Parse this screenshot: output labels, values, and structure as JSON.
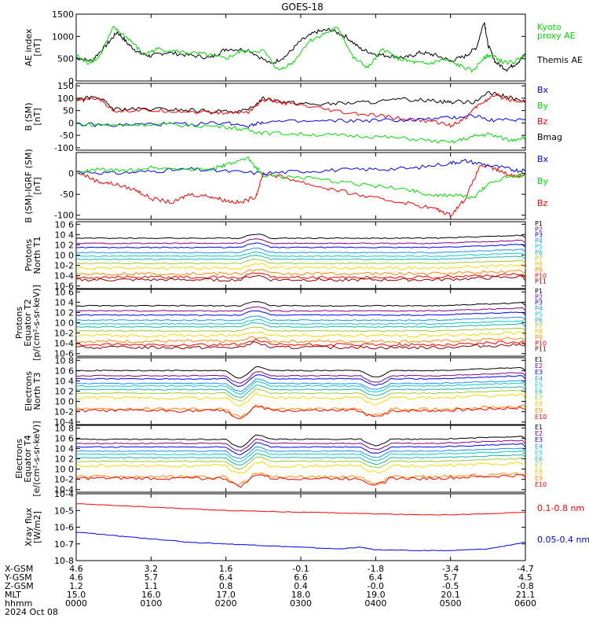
{
  "title": "GOES-18",
  "colors": {
    "black": "#000000",
    "green": "#00dd00",
    "blue": "#0000ff",
    "red": "#ff0000"
  },
  "chart_data": [
    {
      "type": "line",
      "panel": "ae",
      "ylabel": [
        "AE index",
        "[nT]"
      ],
      "ylim": [
        0,
        1500
      ],
      "yticks": [
        "0",
        "500",
        "1000",
        "1500"
      ],
      "ytickvals": [
        0,
        500,
        1000,
        1500
      ],
      "legend": [
        {
          "text": "Kyoto",
          "color": "green"
        },
        {
          "text": "proxy AE",
          "color": "green"
        },
        {
          "text": "Themis AE",
          "color": "black"
        }
      ],
      "series": [
        {
          "name": "Themis AE",
          "color": "black",
          "x": [
            0,
            0.2,
            0.4,
            0.55,
            0.7,
            0.85,
            1.0,
            1.2,
            1.5,
            1.8,
            2.0,
            2.3,
            2.6,
            2.8,
            3.0,
            3.2,
            3.4,
            3.6,
            3.8,
            4.0,
            4.2,
            4.4,
            4.6,
            4.8,
            5.0,
            5.2,
            5.35,
            5.45,
            5.5,
            5.6,
            5.75,
            5.9,
            6.0
          ],
          "y": [
            520,
            450,
            800,
            1100,
            820,
            620,
            560,
            640,
            580,
            520,
            720,
            700,
            380,
            560,
            900,
            1100,
            1150,
            1000,
            720,
            600,
            560,
            520,
            640,
            580,
            450,
            560,
            760,
            1350,
            820,
            420,
            260,
            420,
            600
          ]
        },
        {
          "name": "Kyoto proxy AE",
          "color": "green",
          "x": [
            0,
            0.15,
            0.3,
            0.5,
            0.7,
            0.9,
            1.1,
            1.4,
            1.7,
            2.0,
            2.2,
            2.5,
            2.7,
            2.9,
            3.1,
            3.3,
            3.5,
            3.7,
            3.9,
            4.1,
            4.3,
            4.5,
            4.7,
            4.9,
            5.1,
            5.3,
            5.45,
            5.55,
            5.7,
            5.85,
            6.0
          ],
          "y": [
            580,
            400,
            520,
            1200,
            950,
            600,
            720,
            650,
            600,
            500,
            660,
            680,
            240,
            420,
            880,
            1050,
            1200,
            520,
            300,
            720,
            500,
            420,
            380,
            480,
            360,
            220,
            540,
            580,
            420,
            420,
            580
          ]
        }
      ]
    },
    {
      "type": "line",
      "panel": "b",
      "ylabel": [
        "B (SM)",
        "[nT]"
      ],
      "ylim": [
        -110,
        160
      ],
      "yticks": [
        "-100",
        "-50",
        "0",
        "50",
        "100",
        "150"
      ],
      "ytickvals": [
        -100,
        -50,
        0,
        50,
        100,
        150
      ],
      "legend": [
        {
          "text": "Bx",
          "color": "blue"
        },
        {
          "text": "By",
          "color": "green"
        },
        {
          "text": "Bz",
          "color": "red"
        },
        {
          "text": "Bmag",
          "color": "black"
        }
      ],
      "series": [
        {
          "name": "Bmag",
          "color": "black",
          "x": [
            0,
            0.3,
            0.5,
            0.8,
            1.2,
            1.6,
            2.0,
            2.3,
            2.5,
            2.8,
            3.2,
            3.6,
            4.0,
            4.4,
            4.8,
            5.0,
            5.3,
            5.5,
            5.7,
            6.0
          ],
          "y": [
            95,
            105,
            55,
            55,
            55,
            50,
            45,
            50,
            100,
            85,
            75,
            80,
            85,
            95,
            90,
            85,
            85,
            120,
            110,
            85
          ]
        },
        {
          "name": "Bz",
          "color": "red",
          "x": [
            0,
            0.3,
            0.5,
            0.8,
            1.2,
            1.6,
            2.0,
            2.3,
            2.5,
            2.8,
            3.2,
            3.6,
            4.0,
            4.4,
            4.8,
            5.0,
            5.2,
            5.4,
            5.6,
            5.8,
            6.0
          ],
          "y": [
            90,
            100,
            50,
            50,
            50,
            45,
            40,
            45,
            95,
            80,
            60,
            40,
            30,
            15,
            5,
            -10,
            20,
            80,
            110,
            95,
            85
          ]
        },
        {
          "name": "Bx",
          "color": "blue",
          "x": [
            0,
            0.5,
            1.0,
            1.5,
            2.0,
            2.3,
            2.5,
            3.0,
            3.5,
            4.0,
            4.5,
            5.0,
            5.3,
            5.6,
            6.0
          ],
          "y": [
            -5,
            -10,
            -5,
            -5,
            0,
            -10,
            5,
            5,
            8,
            10,
            12,
            20,
            30,
            10,
            15
          ]
        },
        {
          "name": "By",
          "color": "green",
          "x": [
            0,
            0.5,
            1.0,
            1.5,
            2.0,
            2.3,
            2.5,
            3.0,
            3.5,
            4.0,
            4.5,
            5.0,
            5.3,
            5.5,
            5.8,
            6.0
          ],
          "y": [
            -5,
            -10,
            -5,
            -10,
            -15,
            -30,
            -40,
            -45,
            -50,
            -55,
            -65,
            -80,
            -55,
            -45,
            -70,
            -55
          ]
        }
      ]
    },
    {
      "type": "line",
      "panel": "b-igrf",
      "ylabel": [
        "B (SM)-IGRF (SM)",
        "[nT]"
      ],
      "ylim": [
        -110,
        50
      ],
      "yticks": [
        "-100",
        "-50",
        "0"
      ],
      "ytickvals": [
        -100,
        -50,
        0
      ],
      "legend": [
        {
          "text": "Bx",
          "color": "blue"
        },
        {
          "text": "By",
          "color": "green"
        },
        {
          "text": "Bz",
          "color": "red"
        }
      ],
      "series": [
        {
          "name": "Bz",
          "color": "red",
          "x": [
            0,
            0.3,
            0.5,
            0.8,
            1.0,
            1.3,
            1.5,
            1.8,
            2.0,
            2.2,
            2.4,
            2.5,
            2.8,
            3.2,
            3.6,
            4.0,
            4.4,
            4.8,
            5.0,
            5.2,
            5.4,
            5.6,
            5.8,
            6.0
          ],
          "y": [
            5,
            -20,
            -25,
            -40,
            -60,
            -70,
            -50,
            -55,
            -65,
            -70,
            -55,
            0,
            -10,
            -30,
            -45,
            -60,
            -70,
            -85,
            -100,
            -60,
            20,
            10,
            -5,
            -5
          ]
        },
        {
          "name": "Bx",
          "color": "blue",
          "x": [
            0,
            0.5,
            1.0,
            1.5,
            2.0,
            2.5,
            3.0,
            3.5,
            4.0,
            4.5,
            5.0,
            5.2,
            5.5,
            5.8,
            6.0
          ],
          "y": [
            5,
            0,
            5,
            10,
            5,
            0,
            5,
            8,
            10,
            12,
            25,
            30,
            20,
            10,
            5
          ]
        },
        {
          "name": "By",
          "color": "green",
          "x": [
            0,
            0.3,
            0.6,
            1.0,
            1.4,
            1.8,
            2.0,
            2.3,
            2.5,
            3.0,
            3.5,
            4.0,
            4.5,
            4.8,
            5.0,
            5.3,
            5.5,
            5.8,
            6.0
          ],
          "y": [
            0,
            10,
            5,
            15,
            10,
            10,
            20,
            35,
            -5,
            -10,
            -20,
            -30,
            -40,
            -55,
            -50,
            -60,
            -25,
            -5,
            -5
          ]
        }
      ]
    },
    {
      "type": "line",
      "panel": "protons-t1",
      "log": true,
      "ylabel": [
        "Protons",
        "North T1"
      ],
      "ylim": [
        -6.5,
        6.5
      ],
      "yticks": [
        "10-6",
        "10-4",
        "10-2",
        "10 0",
        "10 2",
        "10 4",
        "10 6"
      ],
      "ytickvals": [
        -6,
        -4,
        -2,
        0,
        2,
        4,
        6
      ],
      "legend": [
        {
          "text": "P1",
          "color": "black"
        },
        {
          "text": "P2",
          "color": "purple"
        },
        {
          "text": "P3",
          "color": "blue"
        },
        {
          "text": "P4",
          "color": "dodgerblue"
        },
        {
          "text": "P5",
          "color": "cyan"
        },
        {
          "text": "P6",
          "color": "turquoise"
        },
        {
          "text": "P7",
          "color": "yellowgreen"
        },
        {
          "text": "P8",
          "color": "gold"
        },
        {
          "text": "P9",
          "color": "orange"
        },
        {
          "text": "P10",
          "color": "red"
        },
        {
          "text": "P11",
          "color": "darkred"
        }
      ],
      "series_levels": [
        3.3,
        2.3,
        1.5,
        0.5,
        -0.2,
        -0.8,
        -1.6,
        -2.5,
        -3.6,
        -4.3,
        -4.8
      ],
      "series_colors": [
        "#000000",
        "#8b008b",
        "#0000ff",
        "#1e90ff",
        "#00ced1",
        "#20b2aa",
        "#9acd32",
        "#ffd700",
        "#ff8c00",
        "#ff0000",
        "#8b0000"
      ]
    },
    {
      "type": "line",
      "panel": "protons-t2",
      "log": true,
      "ylabel": [
        "Protons",
        "Equator T2",
        "[p/(cm²-s-sr-keV)]"
      ],
      "ylim": [
        -6.5,
        6.5
      ],
      "yticks": [
        "10-6",
        "10-4",
        "10-2",
        "10 0",
        "10 2",
        "10 4",
        "10 6"
      ],
      "ytickvals": [
        -6,
        -4,
        -2,
        0,
        2,
        4,
        6
      ],
      "legend": [
        {
          "text": "P1",
          "color": "black"
        },
        {
          "text": "P2",
          "color": "purple"
        },
        {
          "text": "P3",
          "color": "blue"
        },
        {
          "text": "P4",
          "color": "dodgerblue"
        },
        {
          "text": "P5",
          "color": "cyan"
        },
        {
          "text": "P6",
          "color": "turquoise"
        },
        {
          "text": "P7",
          "color": "yellowgreen"
        },
        {
          "text": "P8",
          "color": "gold"
        },
        {
          "text": "P9",
          "color": "orange"
        },
        {
          "text": "P10",
          "color": "red"
        },
        {
          "text": "P11",
          "color": "darkred"
        }
      ],
      "series_levels": [
        3.3,
        2.3,
        1.5,
        0.5,
        -0.2,
        -0.8,
        -1.6,
        -2.5,
        -3.6,
        -4.3,
        -4.8
      ],
      "series_colors": [
        "#000000",
        "#8b008b",
        "#0000ff",
        "#1e90ff",
        "#00ced1",
        "#20b2aa",
        "#9acd32",
        "#ffd700",
        "#ff8c00",
        "#ff0000",
        "#8b0000"
      ]
    },
    {
      "type": "line",
      "panel": "electrons-t3",
      "log": true,
      "ylabel": [
        "Electrons",
        "North T3"
      ],
      "ylim": [
        -4.5,
        8.5
      ],
      "yticks": [
        "10-4",
        "10-2",
        "10 0",
        "10 2",
        "10 4",
        "10 6",
        "10 8"
      ],
      "ytickvals": [
        -4,
        -2,
        0,
        2,
        4,
        6,
        8
      ],
      "legend": [
        {
          "text": "E1",
          "color": "black"
        },
        {
          "text": "E2",
          "color": "purple"
        },
        {
          "text": "E3",
          "color": "blue"
        },
        {
          "text": "E4",
          "color": "dodgerblue"
        },
        {
          "text": "E5",
          "color": "cyan"
        },
        {
          "text": "E6",
          "color": "turquoise"
        },
        {
          "text": "E7",
          "color": "yellowgreen"
        },
        {
          "text": "E8",
          "color": "gold"
        },
        {
          "text": "E9",
          "color": "orange"
        },
        {
          "text": "E10",
          "color": "red"
        }
      ],
      "series_levels": [
        6.0,
        5.0,
        4.4,
        3.5,
        3.0,
        2.3,
        1.6,
        0.7,
        -1.5,
        -1.8
      ],
      "series_colors": [
        "#000000",
        "#8b008b",
        "#0000ff",
        "#1e90ff",
        "#00ced1",
        "#20b2aa",
        "#9acd32",
        "#ffd700",
        "#ff8c00",
        "#ff0000"
      ]
    },
    {
      "type": "line",
      "panel": "electrons-t4",
      "log": true,
      "ylabel": [
        "Electrons",
        "Equator T4",
        "[e/(cm²-s-sr-keV)]"
      ],
      "ylim": [
        -4.5,
        8.5
      ],
      "yticks": [
        "10-4",
        "10-2",
        "10 0",
        "10 2",
        "10 4",
        "10 6",
        "10 8"
      ],
      "ytickvals": [
        -4,
        -2,
        0,
        2,
        4,
        6,
        8
      ],
      "legend": [
        {
          "text": "E1",
          "color": "black"
        },
        {
          "text": "E2",
          "color": "purple"
        },
        {
          "text": "E3",
          "color": "blue"
        },
        {
          "text": "E4",
          "color": "dodgerblue"
        },
        {
          "text": "E5",
          "color": "cyan"
        },
        {
          "text": "E6",
          "color": "turquoise"
        },
        {
          "text": "E7",
          "color": "yellowgreen"
        },
        {
          "text": "E8",
          "color": "gold"
        },
        {
          "text": "E9",
          "color": "orange"
        },
        {
          "text": "E10",
          "color": "red"
        }
      ],
      "series_levels": [
        5.8,
        5.0,
        4.3,
        3.5,
        2.9,
        2.2,
        1.5,
        0.6,
        -1.5,
        -1.8
      ],
      "series_colors": [
        "#000000",
        "#8b008b",
        "#0000ff",
        "#1e90ff",
        "#00ced1",
        "#20b2aa",
        "#9acd32",
        "#ffd700",
        "#ff8c00",
        "#ff0000"
      ]
    },
    {
      "type": "line",
      "panel": "xray",
      "log": true,
      "ylabel": [
        "Xray flux",
        "[W/m2]"
      ],
      "ylim": [
        -8,
        -4
      ],
      "yticks": [
        "10-8",
        "10-7",
        "10-6",
        "10-5",
        "10-4"
      ],
      "ytickvals": [
        -8,
        -7,
        -6,
        -5,
        -4
      ],
      "legend": [
        {
          "text": "0.1-0.8 nm",
          "color": "red"
        },
        {
          "text": "0.05-0.4 nm",
          "color": "blue"
        }
      ],
      "series": [
        {
          "name": "0.1-0.8 nm",
          "color": "red",
          "x": [
            0,
            0.5,
            1.0,
            1.5,
            2.0,
            2.5,
            3.0,
            3.5,
            4.0,
            4.5,
            5.0,
            5.5,
            6.0
          ],
          "y": [
            -4.6,
            -4.7,
            -4.8,
            -4.9,
            -5.0,
            -5.05,
            -5.1,
            -5.15,
            -5.2,
            -5.25,
            -5.25,
            -5.2,
            -5.1
          ]
        },
        {
          "name": "0.05-0.4 nm",
          "color": "blue",
          "x": [
            0,
            0.5,
            1.0,
            1.5,
            2.0,
            2.5,
            3.0,
            3.5,
            3.8,
            4.0,
            4.5,
            5.0,
            5.5,
            6.0
          ],
          "y": [
            -6.3,
            -6.5,
            -6.7,
            -6.9,
            -7.0,
            -7.1,
            -7.2,
            -7.3,
            -7.2,
            -7.35,
            -7.4,
            -7.4,
            -7.3,
            -6.9
          ]
        }
      ]
    }
  ],
  "x_axis": {
    "row_labels": [
      "X-GSM",
      "Y-GSM",
      "Z-GSM",
      "MLT",
      "hhmm",
      "2024 Oct 08"
    ],
    "columns": [
      {
        "x": 0,
        "values": [
          "4.6",
          "4.6",
          "1.2",
          "15.0",
          "0000"
        ]
      },
      {
        "x": 1,
        "values": [
          "3.2",
          "5.7",
          "1.1",
          "16.0",
          "0100"
        ]
      },
      {
        "x": 2,
        "values": [
          "1.6",
          "6.4",
          "0.8",
          "17.0",
          "0200"
        ]
      },
      {
        "x": 3,
        "values": [
          "-0.1",
          "6.6",
          "0.4",
          "18.0",
          "0300"
        ]
      },
      {
        "x": 4,
        "values": [
          "-1.8",
          "6.4",
          "-0.0",
          "19.0",
          "0400"
        ]
      },
      {
        "x": 5,
        "values": [
          "-3.4",
          "5.7",
          "-0.5",
          "20.1",
          "0500"
        ]
      },
      {
        "x": 6,
        "values": [
          "-4.7",
          "4.5",
          "-0.8",
          "21.1",
          "0600"
        ]
      }
    ]
  }
}
